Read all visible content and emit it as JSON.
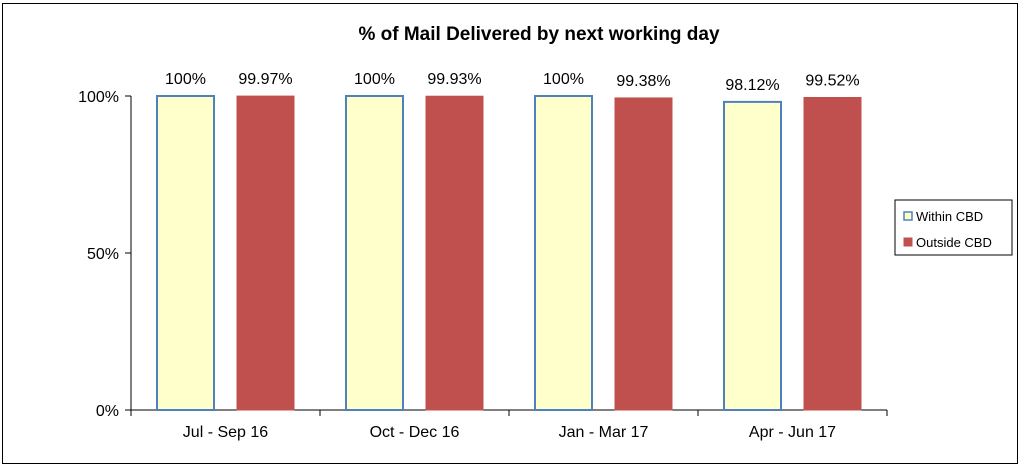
{
  "chart_data": {
    "type": "bar",
    "title": "% of Mail Delivered by next working day",
    "categories": [
      "Jul - Sep 16",
      "Oct - Dec 16",
      "Jan - Mar 17",
      "Apr - Jun 17"
    ],
    "series": [
      {
        "name": "Within CBD",
        "values": [
          100,
          100,
          100,
          98.12
        ],
        "labels": [
          "100%",
          "100%",
          "100%",
          "98.12%"
        ],
        "fill": "#FFFFCC",
        "stroke": "#4F81BD"
      },
      {
        "name": "Outside CBD",
        "values": [
          99.97,
          99.93,
          99.38,
          99.52
        ],
        "labels": [
          "99.97%",
          "99.93%",
          "99.38%",
          "99.52%"
        ],
        "fill": "#C0504D",
        "stroke": "#C0504D"
      }
    ],
    "yticks": [
      0,
      50,
      100
    ],
    "ytick_labels": [
      "0%",
      "50%",
      "100%"
    ],
    "ylim": [
      0,
      100
    ],
    "grid": false,
    "legend_position": "right"
  }
}
